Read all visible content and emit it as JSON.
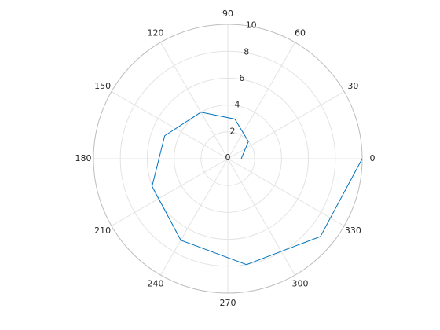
{
  "chart_data": {
    "type": "polar",
    "theta": [
      0,
      40,
      80,
      120,
      160,
      200,
      240,
      280,
      320,
      360
    ],
    "r": [
      1,
      2,
      3,
      4,
      5,
      6,
      7,
      8,
      9,
      10
    ],
    "color": "#0072bd",
    "rlim": [
      0,
      10
    ],
    "rticks": [
      0,
      2,
      4,
      6,
      8,
      10
    ],
    "thetaticks": [
      0,
      30,
      60,
      90,
      120,
      150,
      180,
      210,
      240,
      270,
      300,
      330
    ],
    "grid": true
  }
}
